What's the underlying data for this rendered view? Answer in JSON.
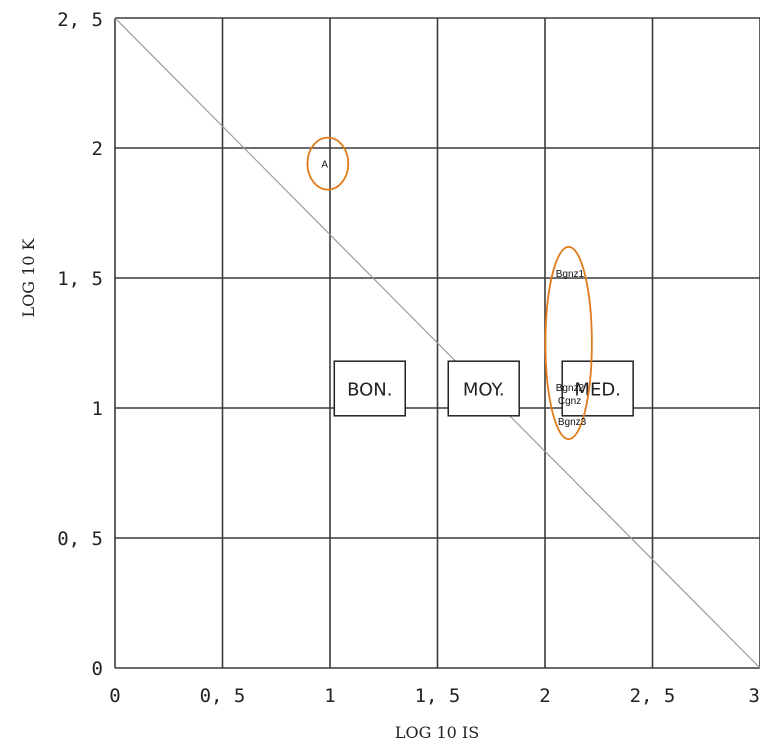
{
  "chart_data": {
    "type": "scatter",
    "xlabel": "LOG 10 IS",
    "ylabel": "LOG 10 K",
    "xlim": [
      0,
      3
    ],
    "ylim": [
      0,
      2.5
    ],
    "grid": true,
    "x_ticks": [
      {
        "value": 0,
        "label": "0"
      },
      {
        "value": 0.5,
        "label": "0, 5"
      },
      {
        "value": 1,
        "label": "1"
      },
      {
        "value": 1.5,
        "label": "1, 5"
      },
      {
        "value": 2,
        "label": "2"
      },
      {
        "value": 2.5,
        "label": "2, 5"
      },
      {
        "value": 3,
        "label": "3"
      }
    ],
    "y_ticks": [
      {
        "value": 0,
        "label": "0"
      },
      {
        "value": 0.5,
        "label": "0, 5"
      },
      {
        "value": 1,
        "label": "1"
      },
      {
        "value": 1.5,
        "label": "1, 5"
      },
      {
        "value": 2,
        "label": "2"
      },
      {
        "value": 2.5,
        "label": "2, 5"
      }
    ],
    "reference_line": {
      "x": [
        0,
        3
      ],
      "y": [
        2.5,
        0
      ]
    },
    "zones": [
      {
        "label": "BON.",
        "x_range": [
          1.02,
          1.35
        ],
        "y_range": [
          0.97,
          1.18
        ]
      },
      {
        "label": "MOY.",
        "x_range": [
          1.55,
          1.88
        ],
        "y_range": [
          0.97,
          1.18
        ]
      },
      {
        "label": "MED.",
        "x_range": [
          2.08,
          2.41
        ],
        "y_range": [
          0.97,
          1.18
        ]
      }
    ],
    "points": [
      {
        "label": "A",
        "x": 0.96,
        "y": 1.94
      },
      {
        "label": "Bgnz1",
        "x": 2.05,
        "y": 1.52
      },
      {
        "label": "Bgnz2",
        "x": 2.05,
        "y": 1.08
      },
      {
        "label": "Cgnz",
        "x": 2.06,
        "y": 1.03
      },
      {
        "label": "Bgnz3",
        "x": 2.06,
        "y": 0.95
      }
    ],
    "annotations": [
      {
        "encloses": [
          "A"
        ],
        "cx": 0.99,
        "cy": 1.94,
        "rx": 0.095,
        "ry": 0.1,
        "color": "#e07b1a"
      },
      {
        "encloses": [
          "Bgnz1",
          "Bgnz2",
          "Cgnz",
          "Bgnz3"
        ],
        "cx": 2.11,
        "cy": 1.25,
        "rx": 0.108,
        "ry": 0.37,
        "color": "#e07b1a"
      }
    ],
    "colors": {
      "grid": "#3b3b3b",
      "reference_line": "#9a9a9a",
      "annotation": "#e07b1a",
      "text": "#222222"
    }
  }
}
